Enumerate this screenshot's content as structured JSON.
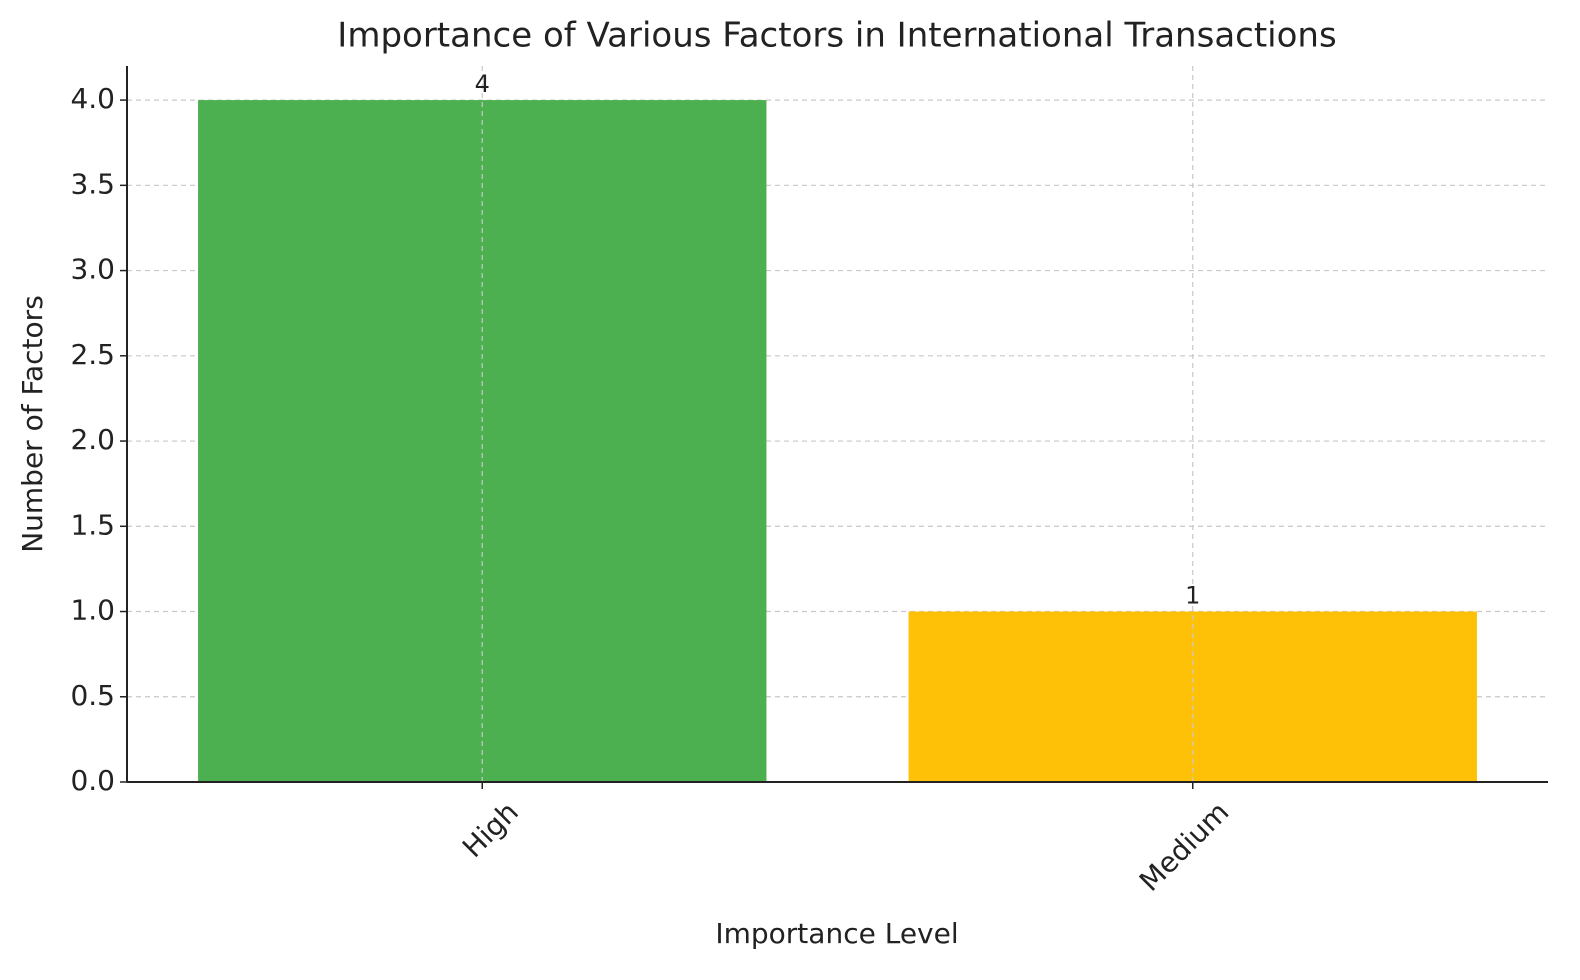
{
  "chart_data": {
    "type": "bar",
    "title": "Importance of Various Factors in International Transactions",
    "x_label": "Importance Level",
    "y_label": "Number of Factors",
    "categories": [
      "High",
      "Medium"
    ],
    "values": [
      4,
      1
    ],
    "colors": [
      "#4caf50",
      "#ffc107"
    ],
    "ylim": [
      0,
      4.2
    ],
    "yticks": [
      {
        "value": 0,
        "label": "0.0"
      },
      {
        "value": 0.5,
        "label": "0.5"
      },
      {
        "value": 1,
        "label": "1.0"
      },
      {
        "value": 1.5,
        "label": "1.5"
      },
      {
        "value": 2,
        "label": "2.0"
      },
      {
        "value": 2.5,
        "label": "2.5"
      },
      {
        "value": 3,
        "label": "3.0"
      },
      {
        "value": 3.5,
        "label": "3.5"
      },
      {
        "value": 4,
        "label": "4.0"
      }
    ],
    "grid": true
  }
}
